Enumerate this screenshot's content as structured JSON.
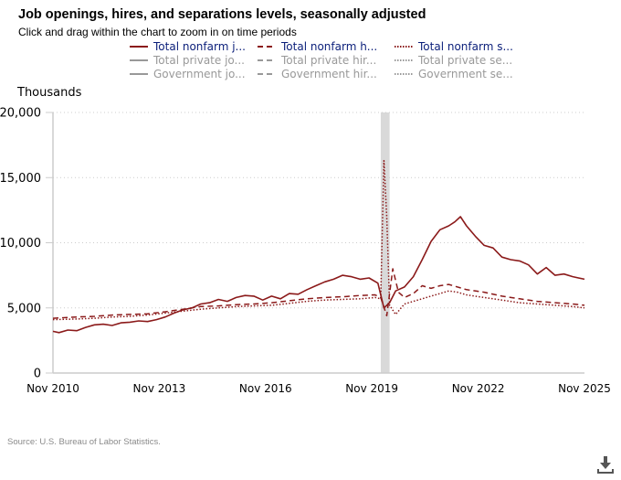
{
  "header": {
    "title": "Job openings, hires, and separations levels, seasonally adjusted",
    "subtitle": "Click and drag within the chart to zoom in on time periods"
  },
  "legend": {
    "items": [
      {
        "label": "Total nonfarm j...",
        "style": "solid",
        "active": true
      },
      {
        "label": "Total nonfarm h...",
        "style": "dashed",
        "active": true
      },
      {
        "label": "Total nonfarm s...",
        "style": "dotted",
        "active": true
      },
      {
        "label": "Total private jo...",
        "style": "solid",
        "active": false
      },
      {
        "label": "Total private hir...",
        "style": "dashed",
        "active": false
      },
      {
        "label": "Total private se...",
        "style": "dotted",
        "active": false
      },
      {
        "label": "Government jo...",
        "style": "solid",
        "active": false
      },
      {
        "label": "Government hir...",
        "style": "dashed",
        "active": false
      },
      {
        "label": "Government se...",
        "style": "dotted",
        "active": false
      }
    ]
  },
  "colors": {
    "series": "#8b1a1a",
    "inactive": "#999999",
    "legend_active_text": "#0b1f7a",
    "grid": "#cccccc",
    "recession": "#d9d9d9"
  },
  "source": "Source: U.S. Bureau of Labor Statistics.",
  "download_icon": "download-icon",
  "chart_data": {
    "type": "line",
    "title": "Job openings, hires, and separations levels, seasonally adjusted",
    "ylabel": "Thousands",
    "xlabel": "",
    "ylim": [
      0,
      20000
    ],
    "yticks": [
      "0",
      "5,000",
      "10,000",
      "15,000",
      "20,000"
    ],
    "ytick_values": [
      0,
      5000,
      10000,
      15000,
      20000
    ],
    "xlim": [
      2010.83,
      2025.83
    ],
    "xticks": [
      "Nov 2010",
      "Nov 2013",
      "Nov 2016",
      "Nov 2019",
      "Nov 2022",
      "Nov 2025"
    ],
    "xtick_values": [
      2010.83,
      2013.83,
      2016.83,
      2019.83,
      2022.83,
      2025.83
    ],
    "grid": "horizontal-dotted",
    "recession_band": [
      2020.08,
      2020.33
    ],
    "series": [
      {
        "name": "Total nonfarm job openings",
        "style": "solid",
        "x": [
          2010.83,
          2011.0,
          2011.25,
          2011.5,
          2011.75,
          2012.0,
          2012.25,
          2012.5,
          2012.75,
          2013.0,
          2013.25,
          2013.5,
          2013.75,
          2014.0,
          2014.25,
          2014.5,
          2014.75,
          2015.0,
          2015.25,
          2015.5,
          2015.75,
          2016.0,
          2016.25,
          2016.5,
          2016.75,
          2017.0,
          2017.25,
          2017.5,
          2017.75,
          2018.0,
          2018.25,
          2018.5,
          2018.75,
          2019.0,
          2019.25,
          2019.5,
          2019.75,
          2020.0,
          2020.17,
          2020.33,
          2020.5,
          2020.75,
          2021.0,
          2021.25,
          2021.5,
          2021.75,
          2022.0,
          2022.17,
          2022.33,
          2022.5,
          2022.75,
          2023.0,
          2023.25,
          2023.5,
          2023.75,
          2024.0,
          2024.25,
          2024.5,
          2024.75,
          2025.0,
          2025.25,
          2025.5,
          2025.83
        ],
        "values": [
          3200,
          3100,
          3300,
          3250,
          3500,
          3700,
          3750,
          3650,
          3850,
          3900,
          4000,
          3950,
          4100,
          4300,
          4600,
          4850,
          5000,
          5300,
          5400,
          5650,
          5500,
          5800,
          5950,
          5900,
          5600,
          5900,
          5700,
          6100,
          6050,
          6400,
          6700,
          7000,
          7200,
          7500,
          7400,
          7200,
          7300,
          6900,
          5000,
          5400,
          6300,
          6600,
          7400,
          8700,
          10100,
          11000,
          11300,
          11600,
          12000,
          11300,
          10500,
          9800,
          9600,
          8900,
          8700,
          8600,
          8300,
          7600,
          8100,
          7500,
          7600,
          7400,
          7200
        ]
      },
      {
        "name": "Total nonfarm hires",
        "style": "dashed",
        "x": [
          2010.83,
          2011.5,
          2012.0,
          2012.5,
          2013.0,
          2013.5,
          2014.0,
          2014.5,
          2015.0,
          2015.5,
          2016.0,
          2016.5,
          2017.0,
          2017.5,
          2018.0,
          2018.5,
          2019.0,
          2019.5,
          2019.92,
          2020.08,
          2020.25,
          2020.42,
          2020.58,
          2020.75,
          2021.0,
          2021.25,
          2021.5,
          2021.75,
          2022.0,
          2022.5,
          2023.0,
          2023.5,
          2024.0,
          2024.5,
          2025.0,
          2025.5,
          2025.83
        ],
        "values": [
          4200,
          4300,
          4350,
          4450,
          4500,
          4550,
          4700,
          4900,
          5100,
          5150,
          5250,
          5300,
          5400,
          5550,
          5700,
          5800,
          5850,
          5950,
          6000,
          5800,
          4400,
          8000,
          6200,
          5800,
          6100,
          6700,
          6500,
          6700,
          6800,
          6400,
          6200,
          5900,
          5700,
          5500,
          5400,
          5300,
          5200
        ]
      },
      {
        "name": "Total nonfarm separations",
        "style": "dotted",
        "x": [
          2010.83,
          2011.5,
          2012.0,
          2012.5,
          2013.0,
          2013.5,
          2014.0,
          2014.5,
          2015.0,
          2015.5,
          2016.0,
          2016.5,
          2017.0,
          2017.5,
          2018.0,
          2018.5,
          2019.0,
          2019.5,
          2019.92,
          2020.08,
          2020.17,
          2020.25,
          2020.33,
          2020.5,
          2020.75,
          2021.0,
          2021.25,
          2021.5,
          2021.75,
          2022.0,
          2022.25,
          2022.5,
          2023.0,
          2023.5,
          2024.0,
          2024.5,
          2025.0,
          2025.5,
          2025.83
        ],
        "values": [
          4100,
          4150,
          4200,
          4300,
          4350,
          4450,
          4600,
          4750,
          4900,
          5000,
          5100,
          5150,
          5200,
          5350,
          5500,
          5600,
          5650,
          5700,
          5800,
          5700,
          16300,
          12000,
          5200,
          4500,
          5300,
          5500,
          5700,
          5900,
          6100,
          6300,
          6200,
          6000,
          5800,
          5600,
          5400,
          5300,
          5200,
          5100,
          5000
        ]
      }
    ]
  }
}
